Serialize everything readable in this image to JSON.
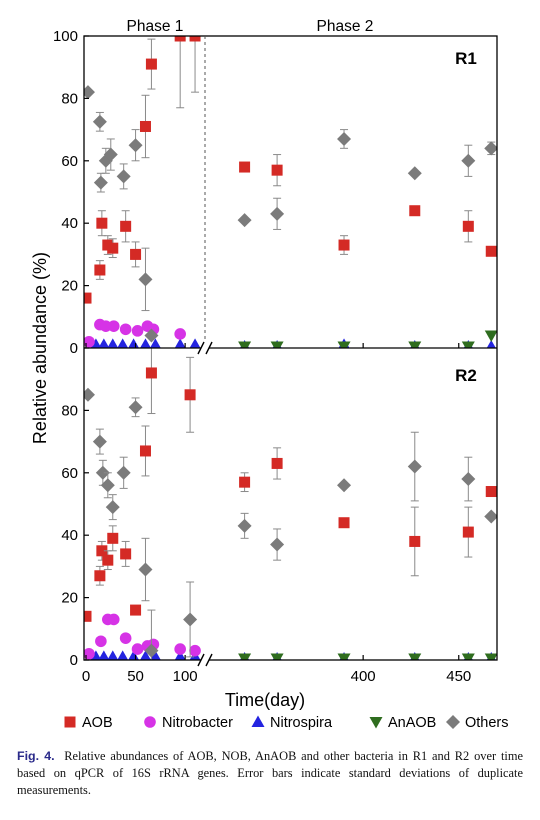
{
  "caption": {
    "label": "Fig. 4.",
    "text": "Relative abundances of AOB, NOB, AnAOB and other bacteria in R1 and R2 over time based on qPCR of 16S rRNA genes. Error bars indicate standard deviations of duplicate measurements."
  },
  "chart_data": {
    "type": "scatter",
    "xlabel": "Time(day)",
    "ylabel": "Relative abundance (%)",
    "x_segments": [
      {
        "range": [
          0,
          115
        ],
        "ticks": [
          0,
          50,
          100
        ]
      },
      {
        "range": [
          322,
          470
        ],
        "ticks": [
          400,
          450
        ]
      }
    ],
    "x_break": true,
    "ylim": [
      0,
      100
    ],
    "y_ticks": [
      0,
      20,
      40,
      60,
      80,
      100
    ],
    "phases": [
      "Phase 1",
      "Phase 2"
    ],
    "phase_boundary": "between day 115 and day 322",
    "legend_position": "bottom",
    "colors": {
      "AOB": "#d42a25",
      "Nitrobacter": "#d633e6",
      "Nitrospira": "#2424e0",
      "AnAOB": "#2f6d1f",
      "Others": "#7b7b7b"
    },
    "series_meta": [
      {
        "name": "AOB",
        "marker": "square"
      },
      {
        "name": "Nitrobacter",
        "marker": "circle"
      },
      {
        "name": "Nitrospira",
        "marker": "triangle-up"
      },
      {
        "name": "AnAOB",
        "marker": "triangle-down"
      },
      {
        "name": "Others",
        "marker": "diamond"
      }
    ],
    "panels": [
      {
        "label": "R1",
        "series": [
          {
            "name": "AOB",
            "points": [
              [
                0,
                16,
                0
              ],
              [
                14,
                25,
                3
              ],
              [
                16,
                40,
                4
              ],
              [
                22,
                33,
                3
              ],
              [
                27,
                32,
                3
              ],
              [
                40,
                39,
                5
              ],
              [
                50,
                30,
                4
              ],
              [
                60,
                71,
                10
              ],
              [
                66,
                91,
                8
              ],
              [
                95,
                100,
                23
              ],
              [
                110,
                100,
                18
              ],
              [
                338,
                58,
                0
              ],
              [
                355,
                57,
                5
              ],
              [
                390,
                33,
                3
              ],
              [
                427,
                44,
                0
              ],
              [
                455,
                39,
                5
              ],
              [
                467,
                31,
                0
              ]
            ]
          },
          {
            "name": "Nitrobacter",
            "points": [
              [
                3,
                2
              ],
              [
                14,
                7.5
              ],
              [
                20,
                7
              ],
              [
                28,
                7
              ],
              [
                40,
                6
              ],
              [
                52,
                5.5
              ],
              [
                62,
                7
              ],
              [
                68,
                6
              ],
              [
                95,
                4.5
              ]
            ]
          },
          {
            "name": "Nitrospira",
            "points": [
              [
                10,
                1
              ],
              [
                18,
                1
              ],
              [
                27,
                1
              ],
              [
                37,
                1
              ],
              [
                48,
                1
              ],
              [
                60,
                1
              ],
              [
                70,
                1
              ],
              [
                95,
                1
              ],
              [
                110,
                1
              ],
              [
                338,
                0.5
              ],
              [
                355,
                0.5
              ],
              [
                390,
                1
              ],
              [
                427,
                0.5
              ],
              [
                455,
                0.5
              ],
              [
                467,
                0.5
              ]
            ]
          },
          {
            "name": "AnAOB",
            "points": [
              [
                338,
                0.5
              ],
              [
                355,
                0.5
              ],
              [
                390,
                0.5
              ],
              [
                427,
                0.5
              ],
              [
                455,
                0.5
              ],
              [
                467,
                4
              ]
            ]
          },
          {
            "name": "Others",
            "points": [
              [
                2,
                82,
                0
              ],
              [
                14,
                72.5,
                3
              ],
              [
                15,
                53,
                3
              ],
              [
                20,
                60,
                4
              ],
              [
                25,
                62,
                5
              ],
              [
                38,
                55,
                4
              ],
              [
                50,
                65,
                5
              ],
              [
                60,
                22,
                10
              ],
              [
                66,
                4,
                0
              ],
              [
                338,
                41,
                0
              ],
              [
                355,
                43,
                5
              ],
              [
                390,
                67,
                3
              ],
              [
                427,
                56,
                0
              ],
              [
                455,
                60,
                5
              ],
              [
                467,
                64,
                2
              ]
            ]
          }
        ]
      },
      {
        "label": "R2",
        "series": [
          {
            "name": "AOB",
            "points": [
              [
                0,
                14,
                0
              ],
              [
                14,
                27,
                3
              ],
              [
                16,
                35,
                3
              ],
              [
                22,
                32,
                3
              ],
              [
                27,
                39,
                4
              ],
              [
                40,
                34,
                4
              ],
              [
                50,
                16,
                0
              ],
              [
                60,
                67,
                8
              ],
              [
                66,
                92,
                13
              ],
              [
                105,
                85,
                12
              ],
              [
                338,
                57,
                3
              ],
              [
                355,
                63,
                5
              ],
              [
                390,
                44,
                0
              ],
              [
                427,
                38,
                11
              ],
              [
                455,
                41,
                8
              ],
              [
                467,
                54,
                0
              ]
            ]
          },
          {
            "name": "Nitrobacter",
            "points": [
              [
                3,
                2
              ],
              [
                15,
                6
              ],
              [
                22,
                13
              ],
              [
                28,
                13
              ],
              [
                40,
                7
              ],
              [
                52,
                3.5
              ],
              [
                62,
                4.5
              ],
              [
                68,
                5
              ],
              [
                95,
                3.5
              ],
              [
                110,
                3
              ]
            ]
          },
          {
            "name": "Nitrospira",
            "points": [
              [
                10,
                1
              ],
              [
                18,
                1
              ],
              [
                27,
                1
              ],
              [
                37,
                1
              ],
              [
                48,
                1
              ],
              [
                60,
                1
              ],
              [
                70,
                1
              ],
              [
                95,
                1
              ],
              [
                110,
                1
              ],
              [
                338,
                0.5
              ],
              [
                355,
                0.5
              ],
              [
                390,
                0.5
              ],
              [
                427,
                0.5
              ],
              [
                455,
                0.5
              ],
              [
                467,
                0.5
              ]
            ]
          },
          {
            "name": "AnAOB",
            "points": [
              [
                338,
                0.5
              ],
              [
                355,
                0.5
              ],
              [
                390,
                0.5
              ],
              [
                427,
                0.5
              ],
              [
                455,
                0.5
              ],
              [
                467,
                0.5
              ]
            ]
          },
          {
            "name": "Others",
            "points": [
              [
                2,
                85,
                0
              ],
              [
                14,
                70,
                4
              ],
              [
                17,
                60,
                4
              ],
              [
                22,
                56,
                4
              ],
              [
                27,
                49,
                4
              ],
              [
                38,
                60,
                5
              ],
              [
                50,
                81,
                3
              ],
              [
                60,
                29,
                10
              ],
              [
                66,
                3,
                13
              ],
              [
                105,
                13,
                12
              ],
              [
                338,
                43,
                4
              ],
              [
                355,
                37,
                5
              ],
              [
                390,
                56,
                0
              ],
              [
                427,
                62,
                11
              ],
              [
                455,
                58,
                7
              ],
              [
                467,
                46,
                0
              ]
            ]
          }
        ]
      }
    ]
  }
}
